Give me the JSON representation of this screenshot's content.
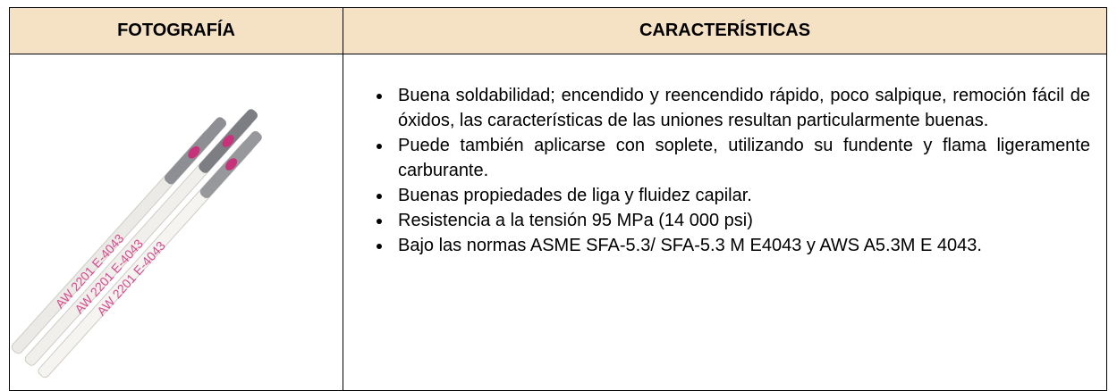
{
  "table": {
    "headers": [
      "FOTOGRAFÍA",
      "CARACTERÍSTICAS"
    ],
    "photo_labels": [
      "AW 2201 E-4043",
      "AW 2201 E-4043",
      "AW 2201 E-4043"
    ],
    "items": [
      "Buena soldabilidad; encendido y reencendido rápido, poco salpique, remoción fácil de óxidos, las características de las uniones resultan particularmente buenas.",
      "Puede también aplicarse con soplete, utilizando su fundente y flama ligeramente carburante.",
      "Buenas propiedades de liga y fluidez capilar.",
      "Resistencia a la tensión 95 MPa (14 000 psi)",
      "Bajo las normas ASME SFA-5.3/ SFA-5.3 M E4043 y AWS A5.3M E 4043."
    ]
  }
}
